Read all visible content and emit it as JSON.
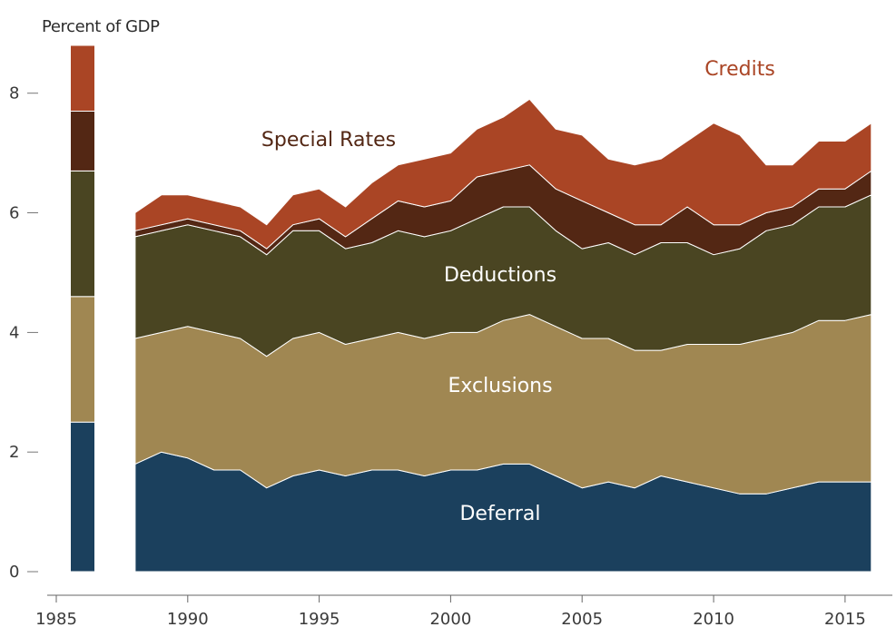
{
  "chart_data": {
    "type": "area",
    "ylabel": "Percent of GDP",
    "ylim": [
      0,
      8.8
    ],
    "xlim": [
      1985,
      2016.8
    ],
    "x_ticks": [
      1985,
      1990,
      1995,
      2000,
      2005,
      2010,
      2015
    ],
    "y_ticks": [
      0,
      2,
      4,
      6,
      8
    ],
    "grid": false,
    "stacked": true,
    "x": [
      1988,
      1989,
      1990,
      1991,
      1992,
      1993,
      1994,
      1995,
      1996,
      1997,
      1998,
      1999,
      2000,
      2001,
      2002,
      2003,
      2004,
      2005,
      2006,
      2007,
      2008,
      2009,
      2010,
      2011,
      2012,
      2013,
      2014,
      2015,
      2016
    ],
    "series": [
      {
        "name": "Deferral",
        "color": "#1b405d",
        "label_color": "#ffffff",
        "values": [
          1.8,
          2.0,
          1.9,
          1.7,
          1.7,
          1.4,
          1.6,
          1.7,
          1.6,
          1.7,
          1.7,
          1.6,
          1.7,
          1.7,
          1.8,
          1.8,
          1.6,
          1.4,
          1.5,
          1.4,
          1.6,
          1.5,
          1.4,
          1.3,
          1.3,
          1.4,
          1.5,
          1.5,
          1.5
        ]
      },
      {
        "name": "Exclusions",
        "color": "#a08752",
        "label_color": "#ffffff",
        "values": [
          2.1,
          2.0,
          2.2,
          2.3,
          2.2,
          2.2,
          2.3,
          2.3,
          2.2,
          2.2,
          2.3,
          2.3,
          2.3,
          2.3,
          2.4,
          2.5,
          2.5,
          2.5,
          2.4,
          2.3,
          2.1,
          2.3,
          2.4,
          2.5,
          2.6,
          2.6,
          2.7,
          2.7,
          2.8
        ]
      },
      {
        "name": "Deductions",
        "color": "#4a4522",
        "label_color": "#ffffff",
        "values": [
          1.7,
          1.7,
          1.7,
          1.7,
          1.7,
          1.7,
          1.8,
          1.7,
          1.6,
          1.6,
          1.7,
          1.7,
          1.7,
          1.9,
          1.9,
          1.8,
          1.6,
          1.5,
          1.6,
          1.6,
          1.8,
          1.7,
          1.5,
          1.6,
          1.8,
          1.8,
          1.9,
          1.9,
          2.0
        ]
      },
      {
        "name": "Special Rates",
        "color": "#532714",
        "label_color": "#532714",
        "values": [
          0.1,
          0.1,
          0.1,
          0.1,
          0.1,
          0.1,
          0.1,
          0.2,
          0.2,
          0.4,
          0.5,
          0.5,
          0.5,
          0.7,
          0.6,
          0.7,
          0.7,
          0.8,
          0.5,
          0.5,
          0.3,
          0.6,
          0.5,
          0.4,
          0.3,
          0.3,
          0.3,
          0.3,
          0.4
        ]
      },
      {
        "name": "Credits",
        "color": "#aa4525",
        "label_color": "#aa4525",
        "values": [
          0.3,
          0.5,
          0.4,
          0.4,
          0.4,
          0.4,
          0.5,
          0.5,
          0.5,
          0.6,
          0.6,
          0.8,
          0.8,
          0.8,
          0.9,
          1.1,
          1.0,
          1.1,
          0.9,
          1.0,
          1.1,
          1.1,
          1.7,
          1.5,
          0.8,
          0.7,
          0.8,
          0.8,
          0.8
        ]
      }
    ],
    "bar_1986": {
      "x": 1986,
      "values": [
        2.5,
        2.1,
        2.1,
        1.0,
        1.1
      ]
    }
  }
}
